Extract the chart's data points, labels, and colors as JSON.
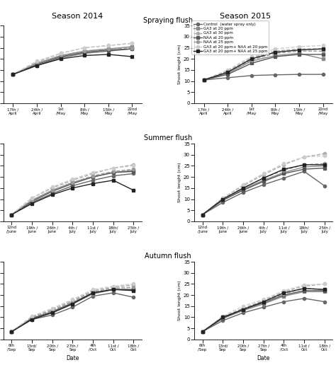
{
  "season_2014": "Season 2014",
  "season_2015": "Season 2015",
  "flush_titles": [
    "Spraying flush",
    "Summer flush",
    "Autumn flush"
  ],
  "ylabel_spraying": "Shoot lenght (cm)",
  "ylabel_summer": "Shoot lenght (cm)",
  "ylabel_autumn": "Shoot length (cm)",
  "xlabel": "Date",
  "legend_entries": [
    "Control  (water spray only)",
    "GA3 at 20 ppm",
    "GA3 at 30 ppm",
    "NAA at 20 ppm",
    "NAA at 25 ppm",
    "GA3 at 20 ppm+ NAA at 20 ppm",
    "GA3 at 20 ppm+ NAA at 25 ppm"
  ],
  "colors": [
    "#666666",
    "#888888",
    "#aaaaaa",
    "#555555",
    "#999999",
    "#cccccc",
    "#222222"
  ],
  "markers": [
    "o",
    "s",
    "o",
    "s",
    "o",
    "o",
    "s"
  ],
  "linestyles": [
    "-",
    "-",
    "--",
    "-",
    "--",
    "--",
    "-"
  ],
  "spraying_xticks": [
    "17th /\nApril",
    "24th /\nApril",
    "1st\n/May",
    "8th /\nMay",
    "15th /\nMay",
    "22nd\n/May"
  ],
  "summer_xticks": [
    "12nd\n/June",
    "19th /\nJune",
    "26th /\nJune",
    "4th /\nJuly",
    "11st /\nJuly",
    "18th/\nJuly",
    "25th /\nJuly"
  ],
  "autumn_xticks": [
    "6th\n/Sep",
    "13rd/\nSep",
    "20th /\nSep",
    "27th /\nSep",
    "4th\n/Oct",
    "11st /\nOct",
    "18th /\nOct"
  ],
  "spraying_2014": [
    [
      13.0,
      17.0,
      20.5,
      22.5,
      23.5,
      24.5
    ],
    [
      13.0,
      18.0,
      21.5,
      23.5,
      24.5,
      25.5
    ],
    [
      13.0,
      18.5,
      22.5,
      25.0,
      26.0,
      27.0
    ],
    [
      13.0,
      17.5,
      21.0,
      23.0,
      24.0,
      24.5
    ],
    [
      13.0,
      18.0,
      21.5,
      23.5,
      24.5,
      25.0
    ],
    [
      13.0,
      19.0,
      22.5,
      25.0,
      26.0,
      27.0
    ],
    [
      13.0,
      17.0,
      20.0,
      21.5,
      22.0,
      21.0
    ]
  ],
  "spraying_2015": [
    [
      10.5,
      11.5,
      12.5,
      12.8,
      13.0,
      13.0
    ],
    [
      10.5,
      13.5,
      19.0,
      21.5,
      22.5,
      20.0
    ],
    [
      10.5,
      14.5,
      20.5,
      23.5,
      24.5,
      24.5
    ],
    [
      10.5,
      13.0,
      18.0,
      21.0,
      22.0,
      22.0
    ],
    [
      10.5,
      14.0,
      19.5,
      22.5,
      23.5,
      23.5
    ],
    [
      10.5,
      15.0,
      21.0,
      24.5,
      25.5,
      26.0
    ],
    [
      10.5,
      14.0,
      20.0,
      23.0,
      24.0,
      24.5
    ]
  ],
  "summer_2014": [
    [
      3.0,
      8.5,
      12.5,
      16.0,
      18.5,
      20.5,
      21.5
    ],
    [
      3.0,
      9.5,
      14.0,
      17.5,
      20.0,
      22.0,
      23.0
    ],
    [
      3.0,
      10.5,
      15.0,
      18.5,
      21.5,
      24.0,
      25.5
    ],
    [
      3.0,
      9.0,
      13.5,
      17.0,
      20.0,
      22.0,
      22.5
    ],
    [
      3.0,
      9.5,
      14.0,
      17.5,
      20.5,
      22.5,
      23.5
    ],
    [
      3.0,
      10.5,
      15.5,
      19.0,
      22.0,
      24.0,
      25.0
    ],
    [
      3.0,
      8.0,
      12.0,
      15.0,
      17.0,
      18.5,
      14.0
    ]
  ],
  "summer_2015": [
    [
      3.0,
      8.5,
      13.0,
      16.5,
      19.5,
      22.5,
      16.0
    ],
    [
      3.0,
      9.5,
      14.5,
      18.5,
      22.0,
      24.5,
      25.0
    ],
    [
      3.0,
      10.5,
      16.0,
      21.0,
      25.5,
      29.0,
      30.5
    ],
    [
      3.0,
      9.5,
      14.0,
      18.0,
      21.5,
      23.5,
      24.0
    ],
    [
      3.0,
      10.0,
      15.0,
      19.5,
      23.0,
      25.5,
      26.0
    ],
    [
      3.0,
      10.5,
      16.5,
      21.5,
      26.0,
      29.0,
      29.5
    ],
    [
      3.0,
      10.0,
      15.0,
      19.5,
      23.5,
      25.5,
      25.5
    ]
  ],
  "autumn_2014": [
    [
      3.5,
      9.0,
      11.0,
      14.5,
      19.5,
      21.0,
      19.0
    ],
    [
      3.5,
      9.5,
      12.0,
      16.0,
      20.5,
      22.5,
      22.5
    ],
    [
      3.5,
      10.0,
      13.5,
      17.5,
      22.0,
      23.5,
      24.5
    ],
    [
      3.5,
      9.5,
      12.5,
      16.5,
      21.0,
      22.5,
      22.5
    ],
    [
      3.5,
      10.0,
      13.0,
      17.0,
      21.5,
      23.0,
      23.5
    ],
    [
      3.5,
      10.5,
      14.0,
      18.0,
      22.5,
      24.0,
      25.0
    ],
    [
      3.5,
      9.0,
      12.0,
      16.0,
      21.0,
      22.5,
      22.0
    ]
  ],
  "autumn_2015": [
    [
      3.5,
      8.5,
      12.0,
      14.5,
      17.0,
      18.5,
      17.0
    ],
    [
      3.5,
      9.5,
      13.0,
      16.0,
      19.5,
      21.5,
      21.5
    ],
    [
      3.5,
      10.0,
      14.0,
      17.5,
      21.5,
      24.0,
      25.0
    ],
    [
      3.5,
      9.5,
      13.5,
      16.5,
      20.0,
      22.0,
      22.0
    ],
    [
      3.5,
      10.0,
      14.0,
      17.0,
      20.5,
      23.0,
      22.5
    ],
    [
      3.5,
      10.5,
      15.0,
      18.0,
      22.0,
      24.5,
      25.0
    ],
    [
      3.5,
      10.0,
      13.5,
      17.0,
      21.0,
      23.0,
      22.5
    ]
  ],
  "ylim": [
    0,
    35
  ],
  "yticks": [
    0,
    5,
    10,
    15,
    20,
    25,
    30,
    35
  ],
  "markersize": 3,
  "linewidth": 1.0,
  "bg_color": "#ffffff",
  "plot_bg": "#ffffff"
}
